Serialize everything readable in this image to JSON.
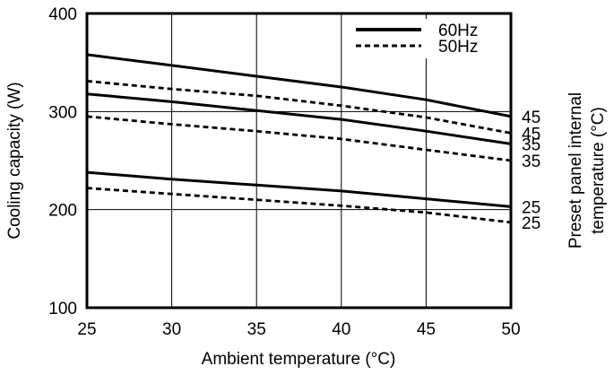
{
  "chart_data": {
    "type": "line",
    "xlabel": "Ambient temperature (°C)",
    "ylabel": "Cooling capacity (W)",
    "right_label_line1": "Preset panel internal",
    "right_label_line2": "temperature (°C)",
    "xlim": [
      25,
      50
    ],
    "ylim": [
      100,
      400
    ],
    "x_ticks": [
      25,
      30,
      35,
      40,
      45,
      50
    ],
    "y_ticks": [
      100,
      200,
      300,
      400
    ],
    "grid": true,
    "legend": {
      "placement": "top-right",
      "entries": [
        {
          "label": "60Hz",
          "style": "solid"
        },
        {
          "label": "50Hz",
          "style": "dashed"
        }
      ]
    },
    "series": [
      {
        "frequency": "60Hz",
        "style": "solid",
        "end_label": "45",
        "x": [
          25,
          30,
          35,
          40,
          45,
          50
        ],
        "y": [
          358,
          347,
          336,
          325,
          312,
          295
        ]
      },
      {
        "frequency": "50Hz",
        "style": "dashed",
        "end_label": "45",
        "x": [
          25,
          30,
          35,
          40,
          45,
          50
        ],
        "y": [
          331,
          323,
          316,
          306,
          294,
          278
        ]
      },
      {
        "frequency": "60Hz",
        "style": "solid",
        "end_label": "35",
        "x": [
          25,
          30,
          35,
          40,
          45,
          50
        ],
        "y": [
          318,
          310,
          301,
          292,
          280,
          267
        ]
      },
      {
        "frequency": "50Hz",
        "style": "dashed",
        "end_label": "35",
        "x": [
          25,
          30,
          35,
          40,
          45,
          50
        ],
        "y": [
          295,
          287,
          280,
          272,
          261,
          250
        ]
      },
      {
        "frequency": "60Hz",
        "style": "solid",
        "end_label": "25",
        "x": [
          25,
          30,
          35,
          40,
          45,
          50
        ],
        "y": [
          238,
          231,
          225,
          219,
          211,
          203
        ]
      },
      {
        "frequency": "50Hz",
        "style": "dashed",
        "end_label": "25",
        "x": [
          25,
          30,
          35,
          40,
          45,
          50
        ],
        "y": [
          222,
          216,
          210,
          204,
          197,
          187
        ]
      }
    ]
  }
}
